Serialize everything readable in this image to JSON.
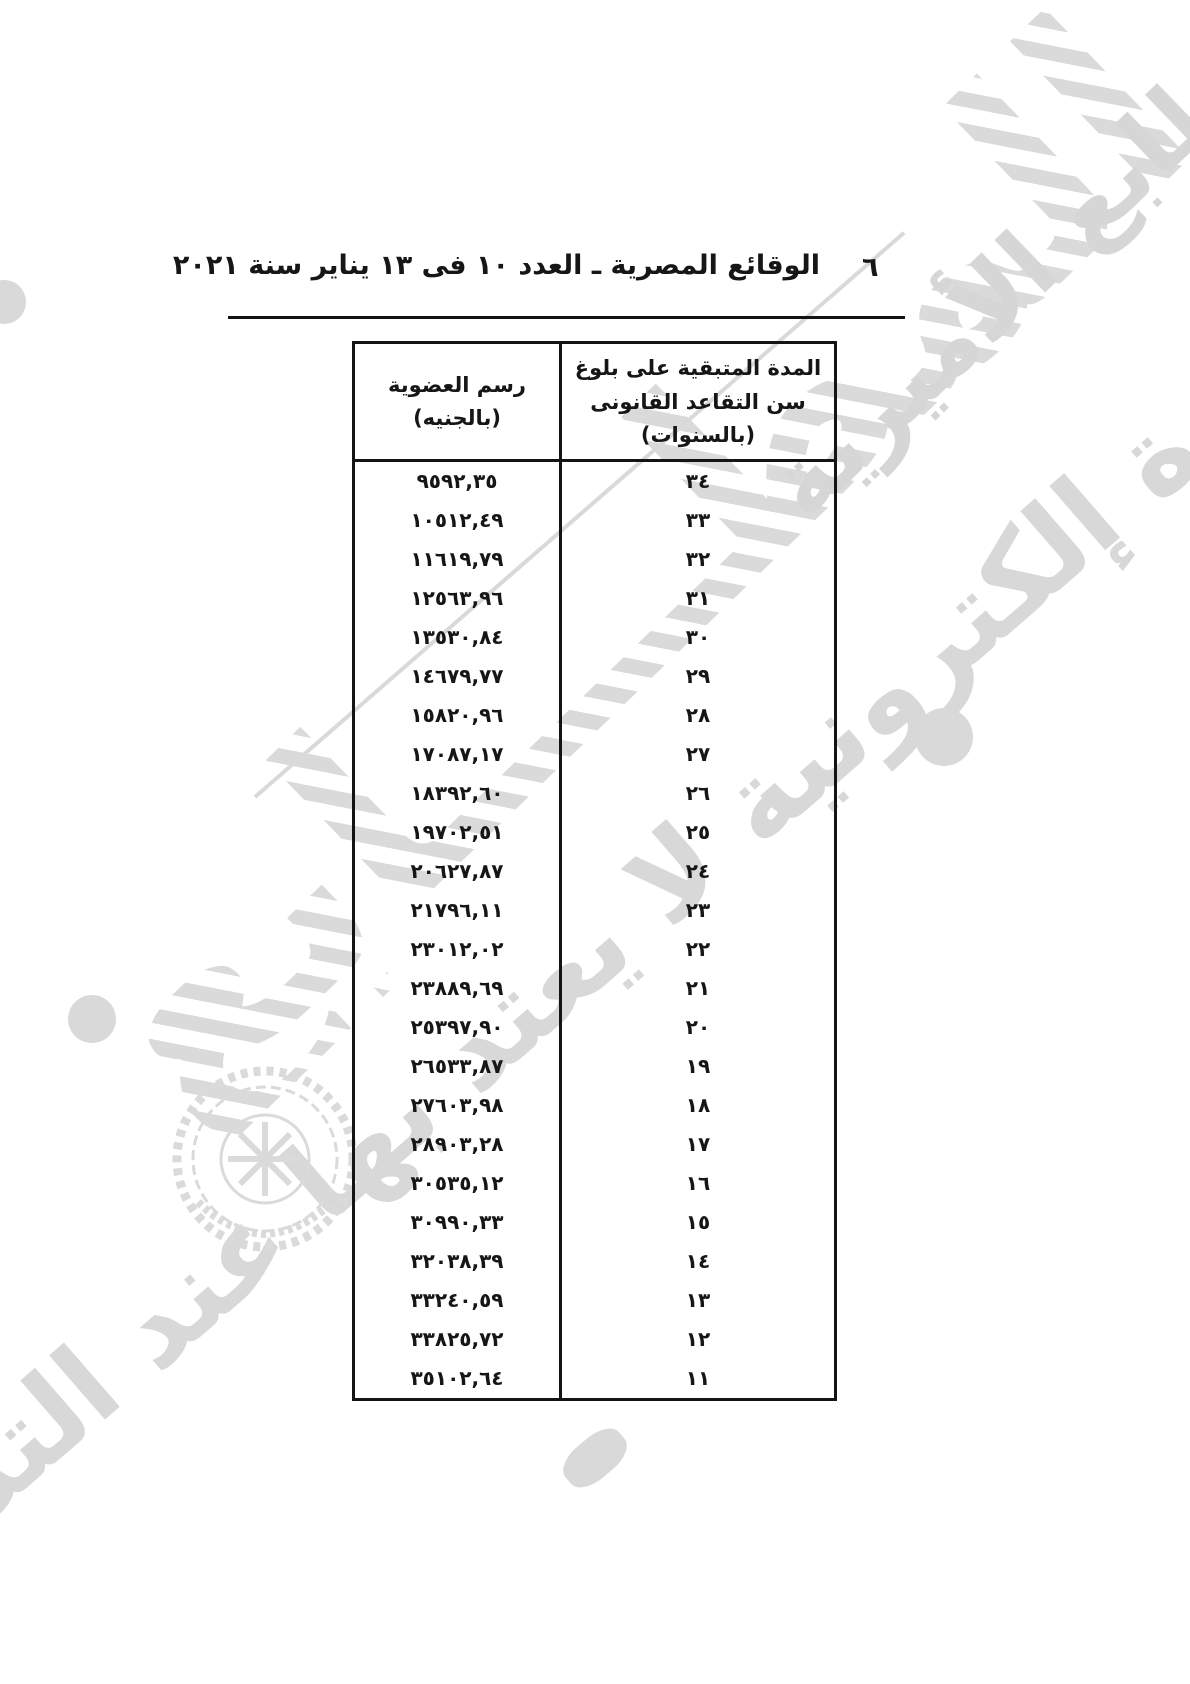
{
  "header": {
    "title": "الوقائع المصرية ـ العدد ١٠ فى ١٣ يناير سنة ٢٠٢١",
    "page_number": "٦"
  },
  "table": {
    "columns": {
      "years_line1": "المدة المتبقية على بلوغ",
      "years_line2": "سن التقاعد القانونى (بالسنوات)",
      "fee_line1": "رسم العضوية",
      "fee_line2": "(بالجنيه)"
    },
    "rows": [
      {
        "years": "٣٤",
        "fee": "٩٥٩٢,٣٥"
      },
      {
        "years": "٣٣",
        "fee": "١٠٥١٢,٤٩"
      },
      {
        "years": "٣٢",
        "fee": "١١٦١٩,٧٩"
      },
      {
        "years": "٣١",
        "fee": "١٢٥٦٣,٩٦"
      },
      {
        "years": "٣٠",
        "fee": "١٣٥٣٠,٨٤"
      },
      {
        "years": "٢٩",
        "fee": "١٤٦٧٩,٧٧"
      },
      {
        "years": "٢٨",
        "fee": "١٥٨٢٠,٩٦"
      },
      {
        "years": "٢٧",
        "fee": "١٧٠٨٧,١٧"
      },
      {
        "years": "٢٦",
        "fee": "١٨٣٩٢,٦٠"
      },
      {
        "years": "٢٥",
        "fee": "١٩٧٠٢,٥١"
      },
      {
        "years": "٢٤",
        "fee": "٢٠٦٢٧,٨٧"
      },
      {
        "years": "٢٣",
        "fee": "٢١٧٩٦,١١"
      },
      {
        "years": "٢٢",
        "fee": "٢٣٠١٢,٠٢"
      },
      {
        "years": "٢١",
        "fee": "٢٣٨٨٩,٦٩"
      },
      {
        "years": "٢٠",
        "fee": "٢٥٣٩٧,٩٠"
      },
      {
        "years": "١٩",
        "fee": "٢٦٥٣٣,٨٧"
      },
      {
        "years": "١٨",
        "fee": "٢٧٦٠٣,٩٨"
      },
      {
        "years": "١٧",
        "fee": "٢٨٩٠٣,٢٨"
      },
      {
        "years": "١٦",
        "fee": "٣٠٥٣٥,١٢"
      },
      {
        "years": "١٥",
        "fee": "٣٠٩٩٠,٣٣"
      },
      {
        "years": "١٤",
        "fee": "٣٢٠٣٨,٣٩"
      },
      {
        "years": "١٣",
        "fee": "٣٣٢٤٠,٥٩"
      },
      {
        "years": "١٢",
        "fee": "٣٣٨٢٥,٧٢"
      },
      {
        "years": "١١",
        "fee": "٣٥١٠٢,٦٤"
      }
    ]
  },
  "watermark": {
    "script_text": "صورة إلكترونية لا يعتد بها عند التداول",
    "press_text": "المطابع الأميرية",
    "press_text_short": "المطــــابع",
    "color": "#d9d9d9"
  }
}
